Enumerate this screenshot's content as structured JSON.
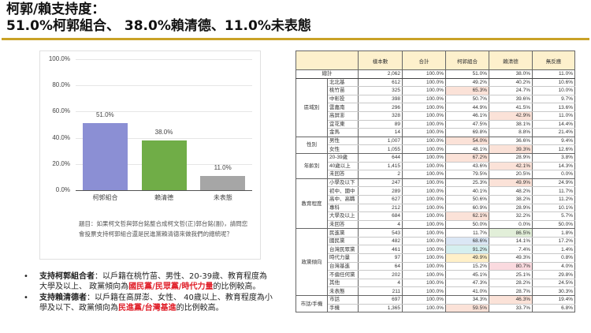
{
  "title": {
    "line1": "柯郭/賴支持度：",
    "line2": "51.0%柯郭組合、 38.0%賴清德、11.0%未表態"
  },
  "colors": {
    "gold_rule": "#c9a227",
    "bar_ko_guo": "#8b8fd4",
    "bar_lai": "#70ad47",
    "bar_undecided": "#a6a6a6",
    "highlight_red_text": "#e0202a"
  },
  "chart_data": {
    "type": "bar",
    "categories": [
      "柯郭組合",
      "賴清德",
      "未表態"
    ],
    "values": [
      51.0,
      38.0,
      11.0
    ],
    "value_labels": [
      "51.0%",
      "38.0%",
      "11.0%"
    ],
    "title": "",
    "xlabel": "",
    "ylabel": "",
    "ylim": [
      0,
      100
    ],
    "yticks": [
      "100.0%",
      "80.0%",
      "60.0%",
      "40.0%",
      "20.0%",
      "0.0%"
    ],
    "grid": true,
    "legend": "none"
  },
  "question": "題目：如果柯文哲與郭台銘整合成柯文哲(正)郭台銘(副)，請問您會投票支持柯郭組合還是民進黨賴清德來做我們的總統呢？",
  "bullets": [
    {
      "bold": "支持柯郭組合者",
      "text1": "：以戶籍在桃竹苗、男性、20-39歲、教育程度為大學及以上、 政黨傾向為",
      "red": "國民黨/民眾黨/時代力量",
      "text2": "的比例較高。"
    },
    {
      "bold": "支持賴清德者",
      "text1": "：以戶籍在高屏澎、女性、 40歲以上、教育程度為小學及以下、政黨傾向為",
      "red": "民進黨/台灣基進",
      "text2": "的比例較高。"
    }
  ],
  "table": {
    "headers": [
      "",
      "",
      "樣本數",
      "合計",
      "柯郭組合",
      "賴清德",
      "無反應"
    ],
    "total": {
      "label": "總計",
      "n": "2,062",
      "sum": "100.0%",
      "ko": "51.0%",
      "lai": "38.0%",
      "none": "11.0%"
    },
    "groups": [
      {
        "label": "區域別",
        "rows": [
          {
            "label": "北北基",
            "n": "612",
            "sum": "100.0%",
            "ko": "49.2%",
            "lai": "40.2%",
            "none": "10.6%",
            "hl": ""
          },
          {
            "label": "桃竹苗",
            "n": "325",
            "sum": "100.0%",
            "ko": "65.3%",
            "lai": "24.7%",
            "none": "10.0%",
            "hl": "ko-pink"
          },
          {
            "label": "中彰投",
            "n": "398",
            "sum": "100.0%",
            "ko": "50.7%",
            "lai": "39.6%",
            "none": "9.7%",
            "hl": ""
          },
          {
            "label": "雲嘉南",
            "n": "296",
            "sum": "100.0%",
            "ko": "44.9%",
            "lai": "41.5%",
            "none": "13.6%",
            "hl": ""
          },
          {
            "label": "高屏澎",
            "n": "328",
            "sum": "100.0%",
            "ko": "46.1%",
            "lai": "42.9%",
            "none": "11.0%",
            "hl": "lai-pink"
          },
          {
            "label": "宜花東",
            "n": "89",
            "sum": "100.0%",
            "ko": "47.5%",
            "lai": "38.1%",
            "none": "14.4%",
            "hl": ""
          },
          {
            "label": "金馬",
            "n": "14",
            "sum": "100.0%",
            "ko": "69.8%",
            "lai": "8.8%",
            "none": "21.4%",
            "hl": ""
          }
        ]
      },
      {
        "label": "性別",
        "rows": [
          {
            "label": "男性",
            "n": "1,007",
            "sum": "100.0%",
            "ko": "54.0%",
            "lai": "36.6%",
            "none": "9.4%",
            "hl": "ko-pink"
          },
          {
            "label": "女性",
            "n": "1,055",
            "sum": "100.0%",
            "ko": "48.1%",
            "lai": "39.3%",
            "none": "12.6%",
            "hl": "lai-pink"
          }
        ]
      },
      {
        "label": "年齡別",
        "rows": [
          {
            "label": "20-39歲",
            "n": "644",
            "sum": "100.0%",
            "ko": "67.2%",
            "lai": "28.9%",
            "none": "3.8%",
            "hl": "ko-pink"
          },
          {
            "label": "40歲以上",
            "n": "1,415",
            "sum": "100.0%",
            "ko": "43.6%",
            "lai": "42.1%",
            "none": "14.3%",
            "hl": "lai-pink"
          },
          {
            "label": "未回答",
            "n": "2",
            "sum": "100.0%",
            "ko": "79.5%",
            "lai": "20.5%",
            "none": "0.0%",
            "hl": ""
          }
        ]
      },
      {
        "label": "教育程度",
        "rows": [
          {
            "label": "小學及以下",
            "n": "247",
            "sum": "100.0%",
            "ko": "25.3%",
            "lai": "49.9%",
            "none": "24.9%",
            "hl": "lai-pink"
          },
          {
            "label": "初中、國中",
            "n": "289",
            "sum": "100.0%",
            "ko": "40.1%",
            "lai": "48.2%",
            "none": "11.7%",
            "hl": ""
          },
          {
            "label": "高中、高職",
            "n": "627",
            "sum": "100.0%",
            "ko": "50.6%",
            "lai": "38.2%",
            "none": "11.2%",
            "hl": ""
          },
          {
            "label": "專科",
            "n": "212",
            "sum": "100.0%",
            "ko": "60.9%",
            "lai": "28.9%",
            "none": "10.1%",
            "hl": ""
          },
          {
            "label": "大學及以上",
            "n": "684",
            "sum": "100.0%",
            "ko": "62.1%",
            "lai": "32.2%",
            "none": "5.7%",
            "hl": "ko-pink"
          },
          {
            "label": "未回答",
            "n": "4",
            "sum": "100.0%",
            "ko": "50.0%",
            "lai": "0.0%",
            "none": "50.0%",
            "hl": ""
          }
        ]
      },
      {
        "label": "政黨傾向",
        "rows": [
          {
            "label": "民進黨",
            "n": "543",
            "sum": "100.0%",
            "ko": "11.7%",
            "lai": "86.5%",
            "none": "1.8%",
            "hl": "lai-green"
          },
          {
            "label": "國民黨",
            "n": "482",
            "sum": "100.0%",
            "ko": "68.6%",
            "lai": "14.1%",
            "none": "17.2%",
            "hl": "ko-blue"
          },
          {
            "label": "台灣民眾黨",
            "n": "461",
            "sum": "100.0%",
            "ko": "91.2%",
            "lai": "7.4%",
            "none": "1.4%",
            "hl": "ko-cyan"
          },
          {
            "label": "時代力量",
            "n": "97",
            "sum": "100.0%",
            "ko": "49.9%",
            "lai": "49.3%",
            "none": "0.8%",
            "hl": "ko-yellow"
          },
          {
            "label": "台灣基進",
            "n": "64",
            "sum": "100.0%",
            "ko": "15.2%",
            "lai": "80.7%",
            "none": "4.0%",
            "hl": "lai-rose"
          },
          {
            "label": "不偏任何黨",
            "n": "202",
            "sum": "100.0%",
            "ko": "45.1%",
            "lai": "25.1%",
            "none": "29.8%",
            "hl": ""
          },
          {
            "label": "其他",
            "n": "4",
            "sum": "100.0%",
            "ko": "47.3%",
            "lai": "28.2%",
            "none": "24.5%",
            "hl": ""
          },
          {
            "label": "未表態",
            "n": "211",
            "sum": "100.0%",
            "ko": "41.0%",
            "lai": "28.7%",
            "none": "30.3%",
            "hl": ""
          }
        ]
      },
      {
        "label": "市話/手機",
        "rows": [
          {
            "label": "市話",
            "n": "697",
            "sum": "100.0%",
            "ko": "34.3%",
            "lai": "46.3%",
            "none": "19.4%",
            "hl": "lai-pink"
          },
          {
            "label": "手機",
            "n": "1,365",
            "sum": "100.0%",
            "ko": "59.5%",
            "lai": "33.7%",
            "none": "6.8%",
            "hl": "ko-pink"
          }
        ]
      }
    ]
  }
}
